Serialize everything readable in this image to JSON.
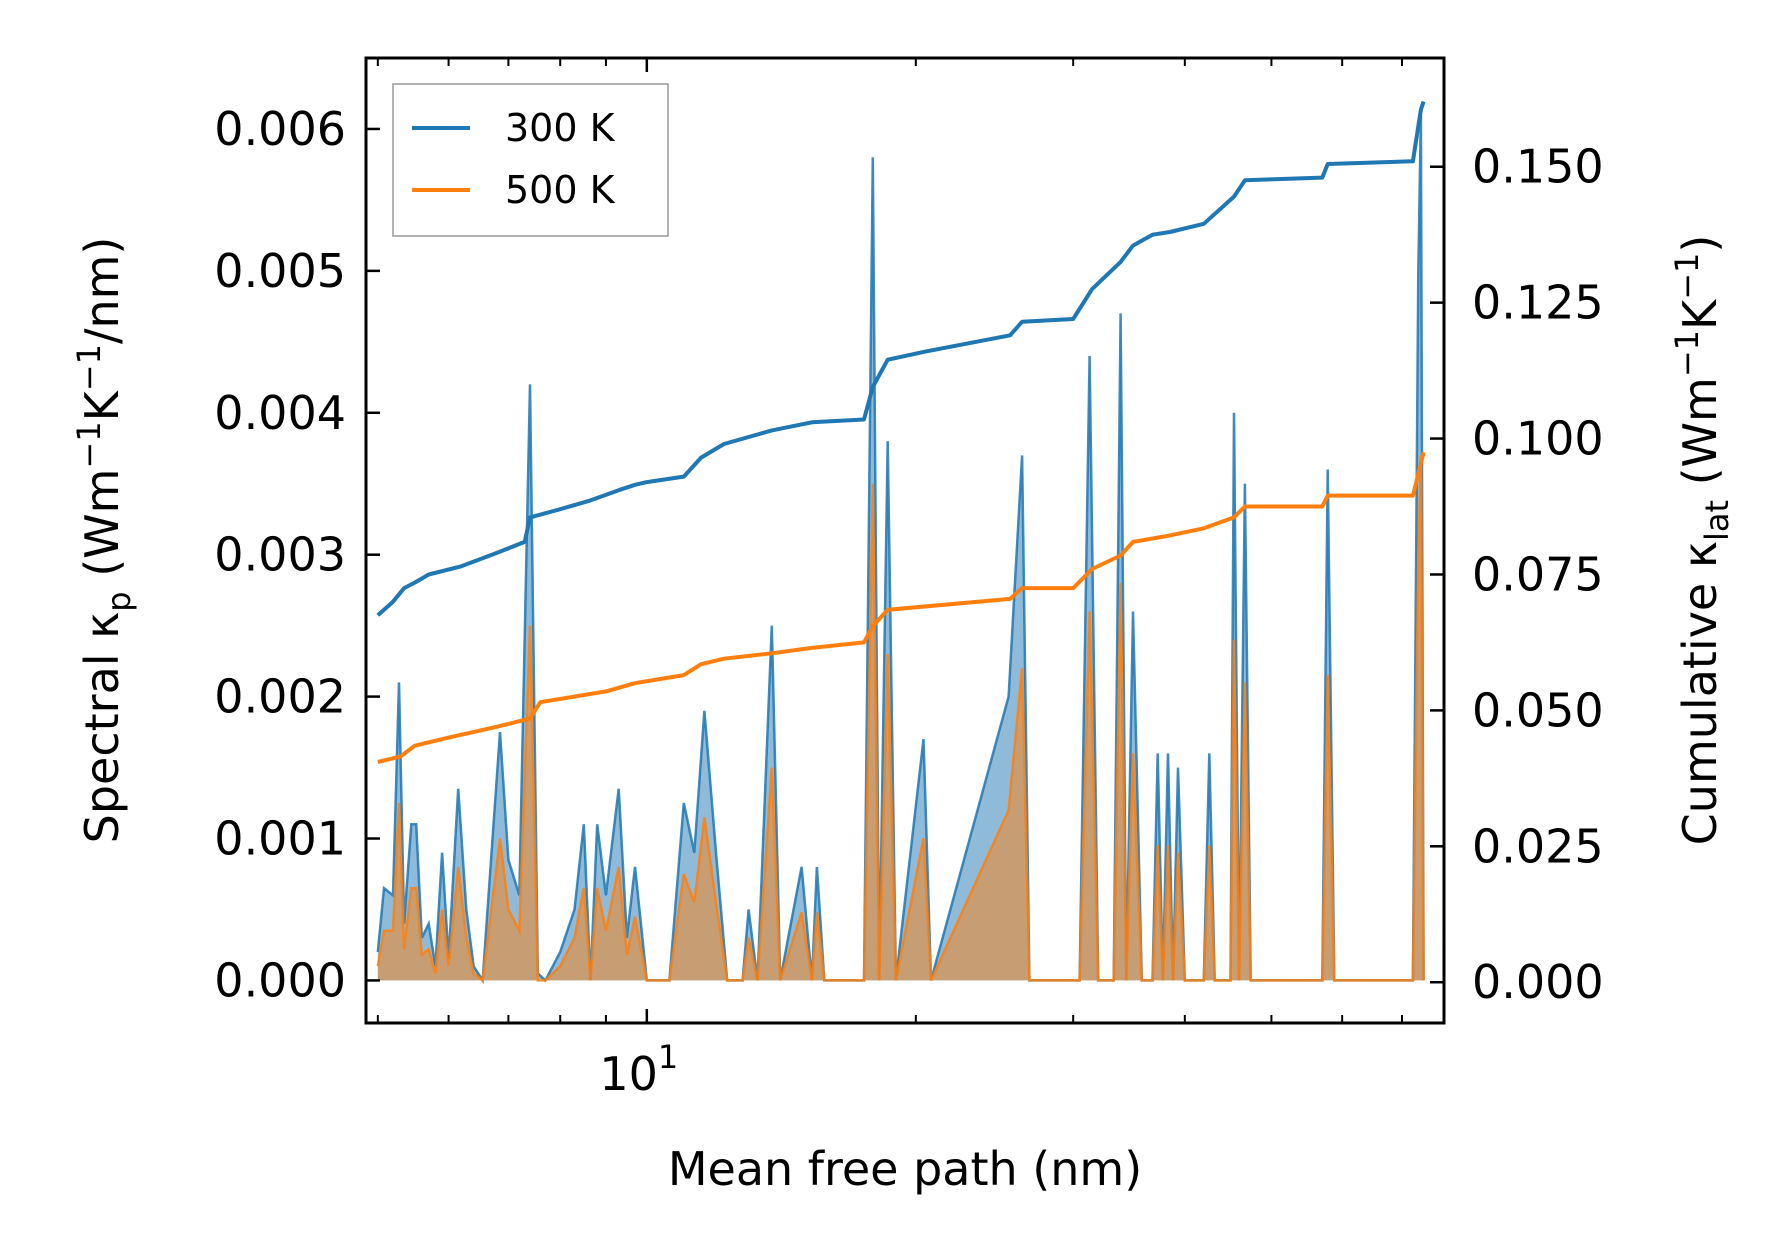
{
  "chart_data": {
    "type": "line",
    "title": "",
    "xlabel": "Mean free path (nm)",
    "ylabel_left": {
      "main": "Spectral κ",
      "sub": "p",
      "unit_pre": " (Wm",
      "sup1": "−1",
      "unit_mid": "K",
      "sup2": "−1",
      "unit_post": "/nm)"
    },
    "ylabel_right": {
      "main": "Cumulative κ",
      "sub": "lat",
      "unit_pre": " (Wm",
      "sup1": "−1",
      "unit_mid": "K",
      "sup2": "−1",
      "unit_post": ")"
    },
    "xscale": "log",
    "xlim": [
      4.85,
      78
    ],
    "xtick_major": {
      "value": 10,
      "base": "10",
      "exp": "1"
    },
    "xtick_minor": [
      5,
      6,
      7,
      8,
      9,
      20,
      30,
      40,
      50,
      60,
      70
    ],
    "ylim_left": [
      -0.0003,
      0.0065
    ],
    "yticks_left": [
      "0.000",
      "0.001",
      "0.002",
      "0.003",
      "0.004",
      "0.005",
      "0.006"
    ],
    "ylim_right": [
      -0.0075,
      0.17
    ],
    "yticks_right": [
      "0.000",
      "0.025",
      "0.050",
      "0.075",
      "0.100",
      "0.125",
      "0.150"
    ],
    "legend": {
      "position": "top-left",
      "entries": [
        {
          "label": "300 K",
          "color": "#1f77b4"
        },
        {
          "label": "500 K",
          "color": "#ff7f0e"
        }
      ]
    },
    "colors": {
      "s300": "#1f77b4",
      "s500": "#ff7f0e",
      "fill300": "#1f77b4",
      "fill500": "#ff7f0e"
    },
    "spectral": {
      "300 K": [
        [
          5.0,
          0.0002
        ],
        [
          5.08,
          0.00065
        ],
        [
          5.2,
          0.0006
        ],
        [
          5.28,
          0.0021
        ],
        [
          5.35,
          0.0004
        ],
        [
          5.45,
          0.0011
        ],
        [
          5.52,
          0.0011
        ],
        [
          5.6,
          0.0003
        ],
        [
          5.7,
          0.0004
        ],
        [
          5.8,
          0.0001
        ],
        [
          5.9,
          0.0009
        ],
        [
          6.0,
          0.00015
        ],
        [
          6.15,
          0.00135
        ],
        [
          6.28,
          0.0005
        ],
        [
          6.4,
          0.0001
        ],
        [
          6.55,
          0.0
        ],
        [
          6.85,
          0.00175
        ],
        [
          7.0,
          0.00085
        ],
        [
          7.2,
          0.0006
        ],
        [
          7.4,
          0.0042
        ],
        [
          7.55,
          5e-05
        ],
        [
          7.7,
          0.0
        ],
        [
          8.0,
          0.0002
        ],
        [
          8.3,
          0.0005
        ],
        [
          8.5,
          0.0011
        ],
        [
          8.65,
          0.0
        ],
        [
          8.8,
          0.0011
        ],
        [
          9.0,
          0.0006
        ],
        [
          9.3,
          0.00135
        ],
        [
          9.5,
          0.0003
        ],
        [
          9.7,
          0.0008
        ],
        [
          10.0,
          0.0
        ],
        [
          10.6,
          0.0
        ],
        [
          11.0,
          0.00125
        ],
        [
          11.3,
          0.0009
        ],
        [
          11.6,
          0.0019
        ],
        [
          11.95,
          0.0009
        ],
        [
          12.3,
          0.0
        ],
        [
          12.8,
          0.0
        ],
        [
          13.0,
          0.0005
        ],
        [
          13.3,
          0.0
        ],
        [
          13.8,
          0.0025
        ],
        [
          14.1,
          0.0
        ],
        [
          14.9,
          0.0008
        ],
        [
          15.3,
          0.0
        ],
        [
          15.5,
          0.0008
        ],
        [
          15.8,
          0.0
        ],
        [
          17.5,
          0.0
        ],
        [
          17.9,
          0.0058
        ],
        [
          18.2,
          0.0
        ],
        [
          18.6,
          0.0038
        ],
        [
          19.0,
          0.0
        ],
        [
          20.4,
          0.0017
        ],
        [
          20.8,
          0.0
        ],
        [
          25.4,
          0.002
        ],
        [
          26.3,
          0.0037
        ],
        [
          26.8,
          0.0
        ],
        [
          30.5,
          0.0
        ],
        [
          31.3,
          0.0044
        ],
        [
          32.0,
          0.0
        ],
        [
          33.3,
          0.0
        ],
        [
          33.9,
          0.0047
        ],
        [
          34.4,
          0.0
        ],
        [
          35.0,
          0.0026
        ],
        [
          35.8,
          0.0
        ],
        [
          36.8,
          0.0
        ],
        [
          37.3,
          0.0016
        ],
        [
          37.8,
          0.0
        ],
        [
          38.3,
          0.0016
        ],
        [
          38.8,
          0.0
        ],
        [
          39.3,
          0.0015
        ],
        [
          40.0,
          0.0
        ],
        [
          42.0,
          0.0
        ],
        [
          42.6,
          0.0016
        ],
        [
          43.2,
          0.0
        ],
        [
          45.0,
          0.0
        ],
        [
          45.4,
          0.004
        ],
        [
          46.0,
          0.0
        ],
        [
          46.7,
          0.0035
        ],
        [
          47.4,
          0.0
        ],
        [
          57.0,
          0.0
        ],
        [
          57.8,
          0.0036
        ],
        [
          58.8,
          0.0
        ],
        [
          72.0,
          0.0
        ],
        [
          73.0,
          0.005
        ],
        [
          73.5,
          0.0061
        ],
        [
          74.0,
          0.0
        ]
      ],
      "500 K": [
        [
          5.0,
          0.0001
        ],
        [
          5.08,
          0.00035
        ],
        [
          5.2,
          0.00035
        ],
        [
          5.28,
          0.00125
        ],
        [
          5.35,
          0.00022
        ],
        [
          5.45,
          0.00065
        ],
        [
          5.52,
          0.00065
        ],
        [
          5.6,
          0.00018
        ],
        [
          5.7,
          0.00022
        ],
        [
          5.8,
          5e-05
        ],
        [
          5.9,
          0.0005
        ],
        [
          6.0,
          0.0001
        ],
        [
          6.15,
          0.0008
        ],
        [
          6.28,
          0.0003
        ],
        [
          6.4,
          5e-05
        ],
        [
          6.55,
          0.0
        ],
        [
          6.85,
          0.001
        ],
        [
          7.0,
          0.0005
        ],
        [
          7.2,
          0.00035
        ],
        [
          7.4,
          0.0025
        ],
        [
          7.55,
          0.0
        ],
        [
          7.7,
          0.0
        ],
        [
          8.0,
          0.0001
        ],
        [
          8.3,
          0.0003
        ],
        [
          8.5,
          0.00065
        ],
        [
          8.65,
          0.0
        ],
        [
          8.8,
          0.00065
        ],
        [
          9.0,
          0.00035
        ],
        [
          9.3,
          0.0008
        ],
        [
          9.5,
          0.00018
        ],
        [
          9.7,
          0.00045
        ],
        [
          10.0,
          0.0
        ],
        [
          10.6,
          0.0
        ],
        [
          11.0,
          0.00075
        ],
        [
          11.3,
          0.00055
        ],
        [
          11.6,
          0.00115
        ],
        [
          11.95,
          0.00055
        ],
        [
          12.3,
          0.0
        ],
        [
          12.8,
          0.0
        ],
        [
          13.0,
          0.0003
        ],
        [
          13.3,
          0.0
        ],
        [
          13.8,
          0.0015
        ],
        [
          14.1,
          0.0
        ],
        [
          14.9,
          0.00048
        ],
        [
          15.3,
          0.0
        ],
        [
          15.5,
          0.00048
        ],
        [
          15.8,
          0.0
        ],
        [
          17.5,
          0.0
        ],
        [
          17.9,
          0.0035
        ],
        [
          18.2,
          0.0
        ],
        [
          18.6,
          0.0023
        ],
        [
          19.0,
          0.0
        ],
        [
          20.4,
          0.001
        ],
        [
          20.8,
          0.0
        ],
        [
          25.4,
          0.0012
        ],
        [
          26.3,
          0.0022
        ],
        [
          26.8,
          0.0
        ],
        [
          30.5,
          0.0
        ],
        [
          31.3,
          0.0026
        ],
        [
          32.0,
          0.0
        ],
        [
          33.3,
          0.0
        ],
        [
          33.9,
          0.0028
        ],
        [
          34.4,
          0.0
        ],
        [
          35.0,
          0.0016
        ],
        [
          35.8,
          0.0
        ],
        [
          36.8,
          0.0
        ],
        [
          37.3,
          0.00095
        ],
        [
          37.8,
          0.0
        ],
        [
          38.3,
          0.00095
        ],
        [
          38.8,
          0.0
        ],
        [
          39.3,
          0.0009
        ],
        [
          40.0,
          0.0
        ],
        [
          42.0,
          0.0
        ],
        [
          42.6,
          0.00095
        ],
        [
          43.2,
          0.0
        ],
        [
          45.0,
          0.0
        ],
        [
          45.4,
          0.0024
        ],
        [
          46.0,
          0.0
        ],
        [
          46.7,
          0.0021
        ],
        [
          47.4,
          0.0
        ],
        [
          57.0,
          0.0
        ],
        [
          57.8,
          0.00215
        ],
        [
          58.8,
          0.0
        ],
        [
          72.0,
          0.0
        ],
        [
          73.0,
          0.003
        ],
        [
          73.5,
          0.0037
        ],
        [
          74.0,
          0.0
        ]
      ]
    },
    "cumulative": {
      "300 K": [
        [
          5.0,
          0.0675
        ],
        [
          5.2,
          0.07
        ],
        [
          5.35,
          0.0725
        ],
        [
          5.5,
          0.0735
        ],
        [
          5.7,
          0.075
        ],
        [
          6.2,
          0.0765
        ],
        [
          6.8,
          0.079
        ],
        [
          7.3,
          0.081
        ],
        [
          7.4,
          0.0855
        ],
        [
          8.0,
          0.087
        ],
        [
          8.6,
          0.0885
        ],
        [
          9.3,
          0.0905
        ],
        [
          9.7,
          0.0915
        ],
        [
          10.0,
          0.092
        ],
        [
          11.0,
          0.093
        ],
        [
          11.5,
          0.0965
        ],
        [
          12.2,
          0.099
        ],
        [
          13.8,
          0.1015
        ],
        [
          15.3,
          0.103
        ],
        [
          17.5,
          0.1035
        ],
        [
          17.9,
          0.1095
        ],
        [
          18.6,
          0.1145
        ],
        [
          20.5,
          0.116
        ],
        [
          25.5,
          0.119
        ],
        [
          26.3,
          0.1215
        ],
        [
          30.0,
          0.122
        ],
        [
          31.5,
          0.1275
        ],
        [
          33.9,
          0.1325
        ],
        [
          35.0,
          0.1355
        ],
        [
          36.8,
          0.1375
        ],
        [
          38.5,
          0.138
        ],
        [
          42.0,
          0.1395
        ],
        [
          45.4,
          0.1445
        ],
        [
          46.7,
          0.1475
        ],
        [
          57.0,
          0.148
        ],
        [
          57.8,
          0.1505
        ],
        [
          72.0,
          0.151
        ],
        [
          73.5,
          0.1605
        ],
        [
          74.0,
          0.162
        ]
      ],
      "500 K": [
        [
          5.0,
          0.0405
        ],
        [
          5.3,
          0.0415
        ],
        [
          5.5,
          0.0435
        ],
        [
          6.0,
          0.045
        ],
        [
          6.8,
          0.047
        ],
        [
          7.4,
          0.0485
        ],
        [
          7.6,
          0.0515
        ],
        [
          9.0,
          0.0535
        ],
        [
          9.7,
          0.055
        ],
        [
          11.0,
          0.0565
        ],
        [
          11.5,
          0.0585
        ],
        [
          12.2,
          0.0595
        ],
        [
          13.8,
          0.0605
        ],
        [
          15.3,
          0.0615
        ],
        [
          17.5,
          0.0625
        ],
        [
          17.9,
          0.0655
        ],
        [
          18.6,
          0.0685
        ],
        [
          25.5,
          0.0705
        ],
        [
          26.3,
          0.0725
        ],
        [
          30.0,
          0.0725
        ],
        [
          31.5,
          0.076
        ],
        [
          33.9,
          0.0785
        ],
        [
          35.0,
          0.081
        ],
        [
          38.0,
          0.082
        ],
        [
          42.0,
          0.0835
        ],
        [
          45.4,
          0.0855
        ],
        [
          46.7,
          0.0875
        ],
        [
          57.0,
          0.0875
        ],
        [
          57.8,
          0.0895
        ],
        [
          72.0,
          0.0895
        ],
        [
          73.0,
          0.0935
        ],
        [
          74.0,
          0.0975
        ]
      ]
    }
  }
}
